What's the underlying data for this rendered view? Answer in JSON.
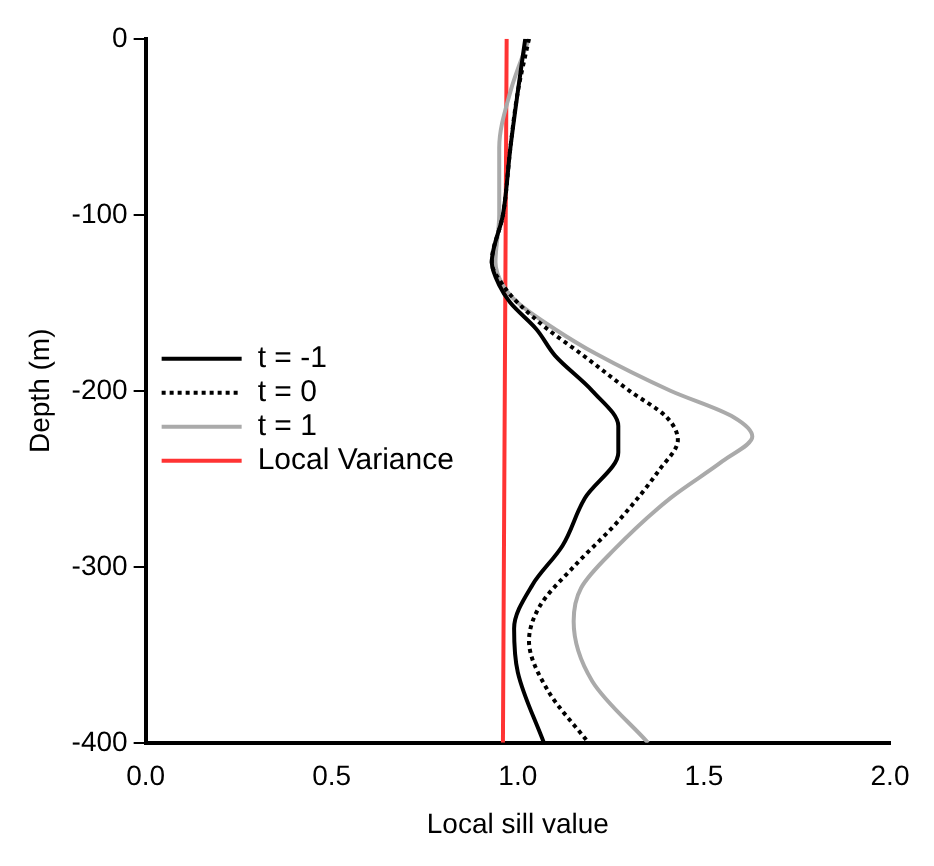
{
  "chart_data": {
    "type": "line",
    "xlabel": "Local sill value",
    "ylabel": "Depth (m)",
    "xlim": [
      0,
      2
    ],
    "ylim": [
      -400,
      0
    ],
    "xticks": [
      {
        "value": 0,
        "label": "0.0"
      },
      {
        "value": 0.5,
        "label": "0.5"
      },
      {
        "value": 1,
        "label": "1.0"
      },
      {
        "value": 1.5,
        "label": "1.5"
      },
      {
        "value": 2,
        "label": "2.0"
      }
    ],
    "yticks": [
      0,
      -100,
      -200,
      -300,
      -400
    ],
    "grid": false,
    "legend": "left",
    "marker": "none",
    "series": [
      {
        "name": "t = -1",
        "color": "#000000",
        "line_style": "solid",
        "x": [
          1.02,
          1.0,
          0.98,
          0.96,
          0.93,
          0.95,
          0.98,
          1.05,
          1.1,
          1.2,
          1.27,
          1.27,
          1.18,
          1.12,
          1.04,
          0.99,
          1.0,
          1.07
        ],
        "values": [
          0,
          -30,
          -62,
          -100,
          -127,
          -140,
          -150,
          -165,
          -180,
          -200,
          -220,
          -235,
          -261,
          -288,
          -310,
          -335,
          -360,
          -400
        ]
      },
      {
        "name": "t = 0",
        "color": "#000000",
        "line_style": "dotted",
        "x": [
          1.03,
          1.0,
          0.98,
          0.96,
          0.93,
          0.96,
          1.0,
          1.08,
          1.17,
          1.3,
          1.4,
          1.43,
          1.38,
          1.27,
          1.15,
          1.06,
          1.03,
          1.08,
          1.19
        ],
        "values": [
          0,
          -30,
          -62,
          -100,
          -127,
          -140,
          -150,
          -165,
          -179,
          -200,
          -215,
          -228,
          -245,
          -274,
          -300,
          -322,
          -342,
          -370,
          -400
        ]
      },
      {
        "name": "t = 1",
        "color": "#aaaaaa",
        "line_style": "solid",
        "x": [
          1.03,
          0.98,
          0.95,
          0.95,
          0.94,
          0.96,
          1.0,
          1.1,
          1.21,
          1.41,
          1.58,
          1.63,
          1.55,
          1.41,
          1.26,
          1.17,
          1.15,
          1.2,
          1.35
        ],
        "values": [
          0,
          -30,
          -62,
          -100,
          -127,
          -140,
          -150,
          -165,
          -179,
          -200,
          -215,
          -226,
          -240,
          -261,
          -290,
          -312,
          -331,
          -365,
          -400
        ]
      },
      {
        "name": "Local Variance",
        "color": "#ff3333",
        "line_style": "solid",
        "x": [
          0.97,
          0.96
        ],
        "values": [
          0,
          -400
        ]
      }
    ]
  }
}
